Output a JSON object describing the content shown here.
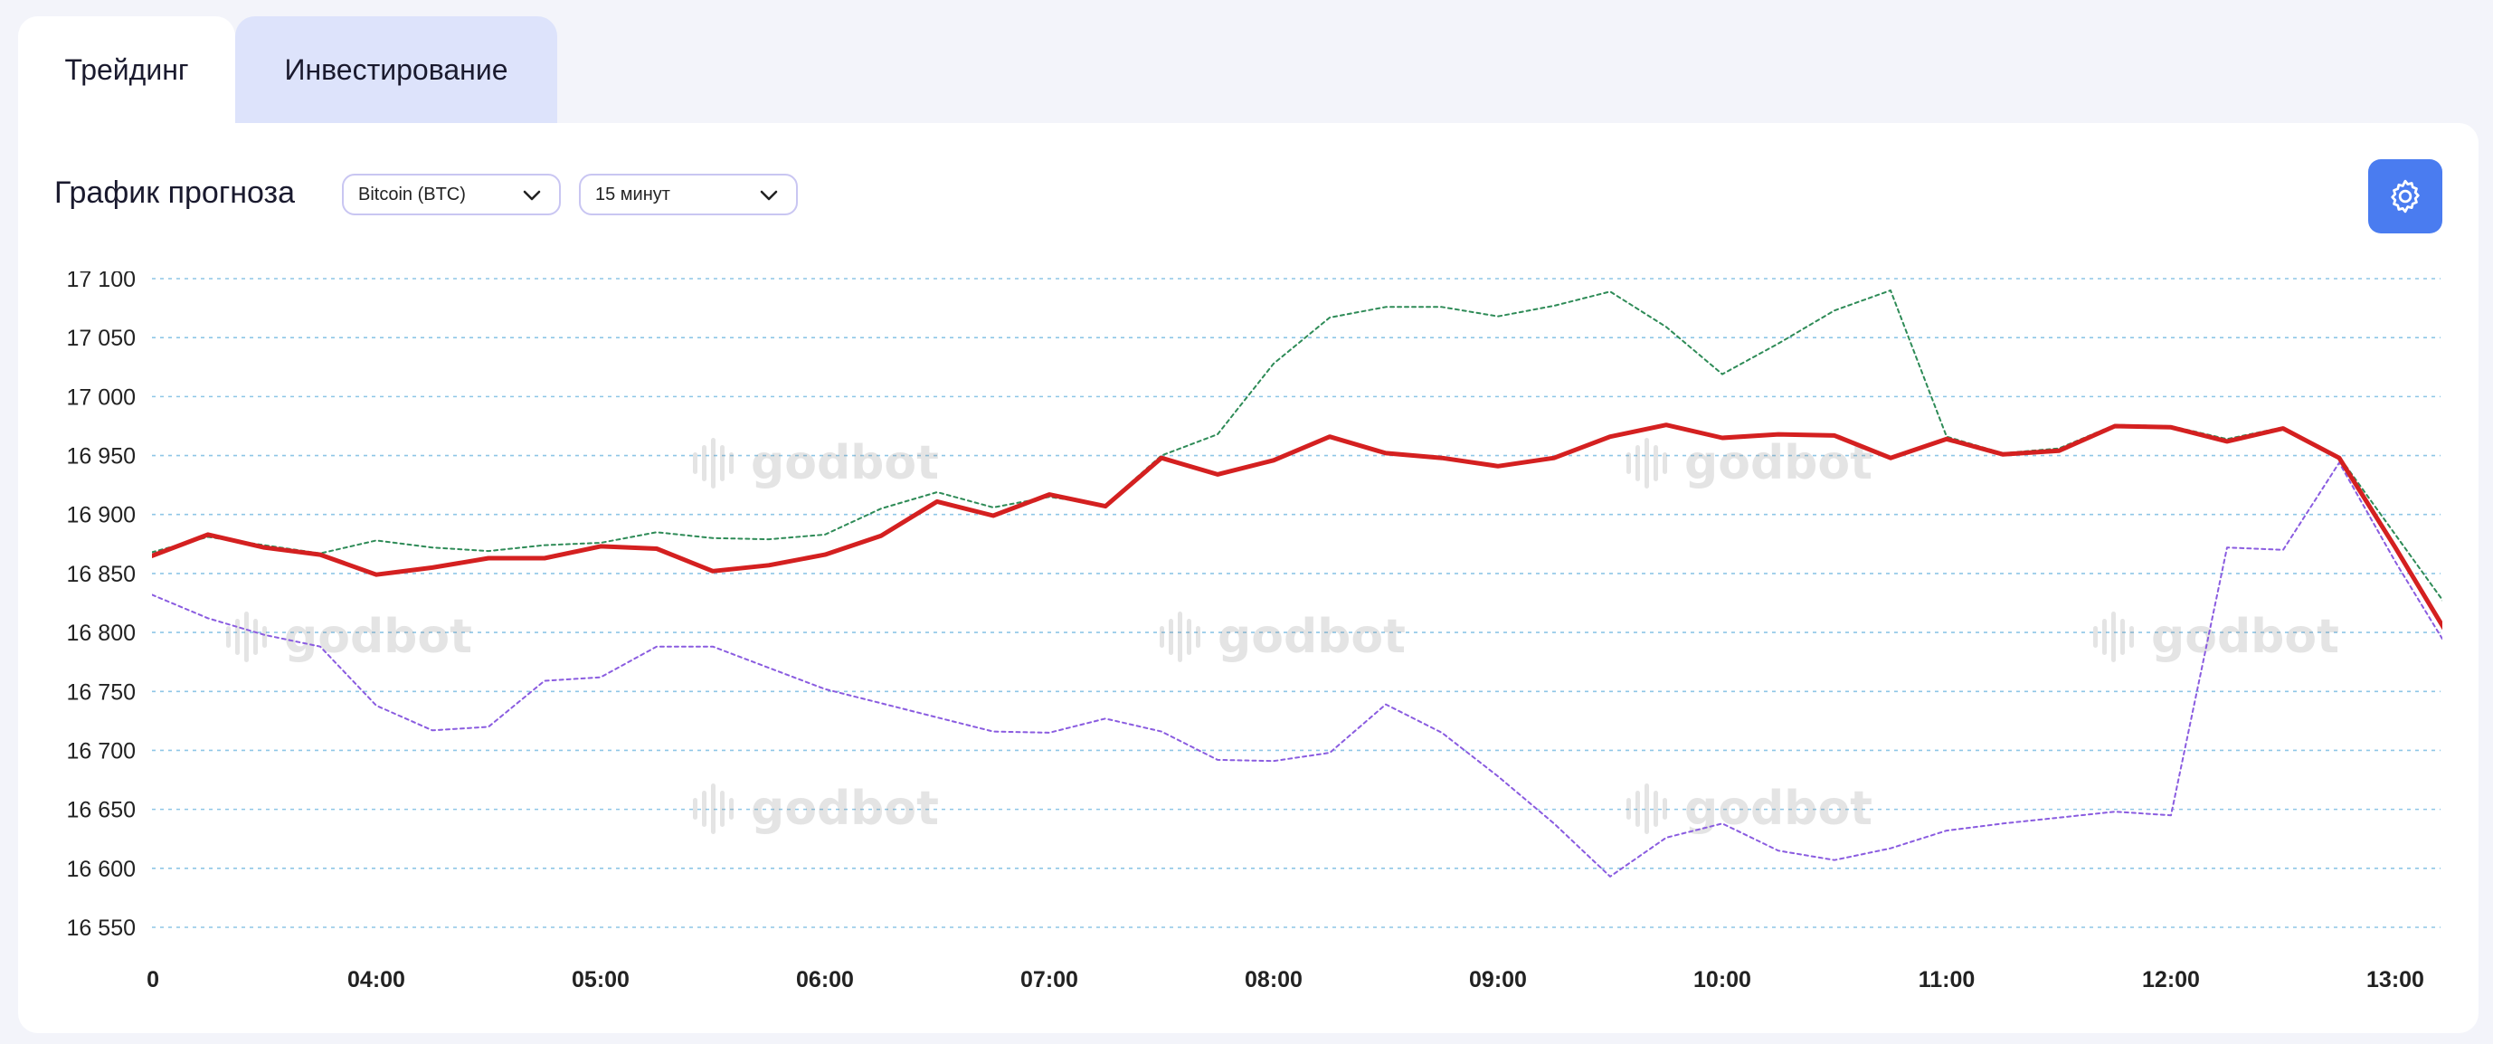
{
  "tabs": [
    {
      "label": "Трейдинг",
      "active": true
    },
    {
      "label": "Инвестирование",
      "active": false
    }
  ],
  "panel": {
    "title": "График прогноза",
    "coin_select": "Bitcoin (BTC)",
    "interval_select": "15 минут",
    "settings_icon": "gear-icon"
  },
  "watermark": "godbot",
  "colors": {
    "forecast": "#d42020",
    "upper": "#2e8b57",
    "lower": "#8a5ce0",
    "grid": "#8ec6e6",
    "accent": "#4a7cf0",
    "tab_inactive": "#dde3fb"
  },
  "chart_data": {
    "type": "line",
    "x_ticks": [
      "0",
      "04:00",
      "05:00",
      "06:00",
      "07:00",
      "08:00",
      "09:00",
      "10:00",
      "11:00",
      "12:00",
      "13:00"
    ],
    "y_ticks": [
      "16 550",
      "16 600",
      "16 650",
      "16 700",
      "16 750",
      "16 800",
      "16 850",
      "16 900",
      "16 950",
      "17 000",
      "17 050",
      "17 100"
    ],
    "ylim": [
      16535,
      17105
    ],
    "x": [
      "03:00",
      "03:15",
      "03:30",
      "03:45",
      "04:00",
      "04:15",
      "04:30",
      "04:45",
      "05:00",
      "05:15",
      "05:30",
      "05:45",
      "06:00",
      "06:15",
      "06:30",
      "06:45",
      "07:00",
      "07:15",
      "07:30",
      "07:45",
      "08:00",
      "08:15",
      "08:30",
      "08:45",
      "09:00",
      "09:15",
      "09:30",
      "09:45",
      "10:00",
      "10:15",
      "10:30",
      "10:45",
      "11:00",
      "11:15",
      "11:30",
      "11:45",
      "12:00",
      "12:15",
      "12:30",
      "12:45",
      "13:00",
      "13:15"
    ],
    "series": [
      {
        "key": "forecast",
        "values": [
          16865,
          16883,
          16872,
          16866,
          16849,
          16855,
          16863,
          16863,
          16873,
          16871,
          16852,
          16857,
          16866,
          16882,
          16911,
          16899,
          16917,
          16907,
          16948,
          16934,
          16946,
          16966,
          16952,
          16948,
          16941,
          16948,
          16966,
          16976,
          16965,
          16968,
          16967,
          16948,
          16964,
          16951,
          16954,
          16975,
          16974,
          16962,
          16973,
          16948,
          16872,
          16793
        ]
      },
      {
        "key": "upper",
        "values": [
          16868,
          16881,
          16874,
          16867,
          16878,
          16872,
          16869,
          16874,
          16876,
          16885,
          16880,
          16879,
          16883,
          16905,
          16919,
          16906,
          16915,
          16908,
          16950,
          16968,
          17028,
          17067,
          17076,
          17076,
          17068,
          17077,
          17089,
          17059,
          17019,
          17045,
          17073,
          17090,
          16966,
          16952,
          16956,
          16976,
          16975,
          16964,
          16974,
          16949,
          16883,
          16817
        ]
      },
      {
        "key": "lower",
        "values": [
          16832,
          16812,
          16798,
          16788,
          16738,
          16717,
          16720,
          16759,
          16762,
          16788,
          16788,
          16770,
          16752,
          16740,
          16728,
          16716,
          16715,
          16727,
          16716,
          16692,
          16691,
          16698,
          16739,
          16715,
          16678,
          16638,
          16593,
          16626,
          16638,
          16615,
          16607,
          16617,
          16632,
          16638,
          16643,
          16648,
          16645,
          16872,
          16870,
          16944,
          16860,
          16782
        ]
      }
    ]
  }
}
